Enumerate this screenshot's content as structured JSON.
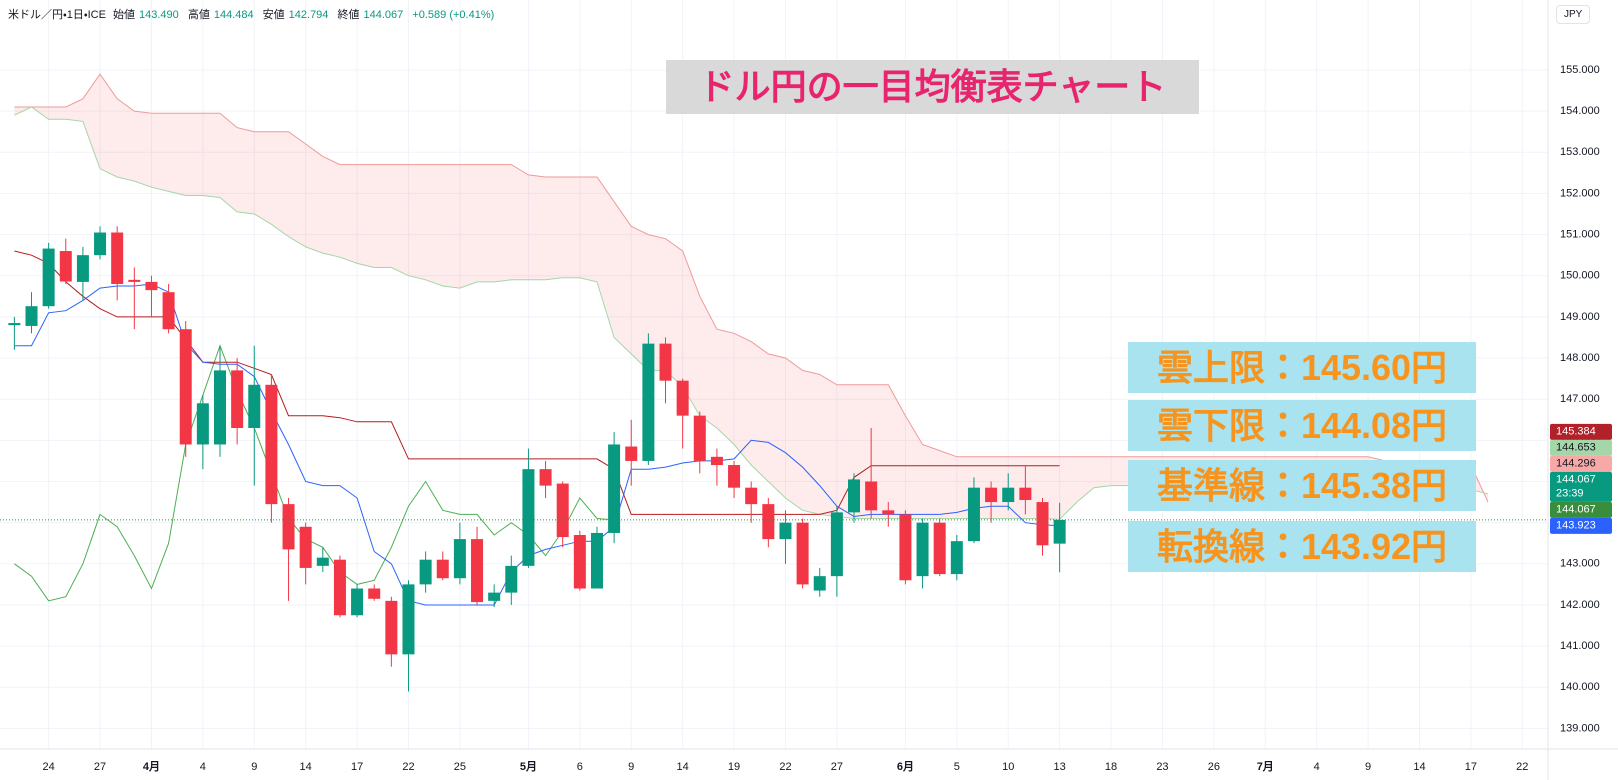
{
  "header": {
    "symbol": "米ドル／円・1日・ICE",
    "fields": [
      {
        "label": "始値",
        "value": "143.490"
      },
      {
        "label": "高値",
        "value": "144.484"
      },
      {
        "label": "安値",
        "value": "142.794"
      },
      {
        "label": "終値",
        "value": "144.067"
      }
    ],
    "change": "+0.589 (+0.41%)"
  },
  "currency": "JPY",
  "chart_data": {
    "type": "candlestick",
    "title": "ドル円の一目均衡表チャート",
    "annotations": [
      "雲上限：145.60円",
      "雲下限：144.08円",
      "基準線：145.38円",
      "転換線：143.92円"
    ],
    "categories": [
      null,
      null,
      "24",
      null,
      null,
      "27",
      null,
      null,
      "4月",
      null,
      null,
      "4",
      null,
      null,
      "9",
      null,
      null,
      "14",
      null,
      null,
      "17",
      null,
      null,
      "22",
      null,
      null,
      "25",
      null,
      null,
      null,
      "5月",
      null,
      null,
      "6",
      null,
      null,
      "9",
      null,
      null,
      "14",
      null,
      null,
      "19",
      null,
      null,
      "22",
      null,
      null,
      "27",
      null,
      null,
      null,
      "6月",
      null,
      null,
      "5",
      null,
      null,
      "10",
      null,
      null,
      "13",
      null,
      null,
      "18",
      null,
      null,
      "23",
      null,
      null,
      "26",
      null,
      null,
      "7月",
      null,
      null,
      "4",
      null,
      null,
      "9",
      null,
      null,
      "14",
      null,
      null,
      "17",
      null,
      null,
      "22",
      null
    ],
    "open": [
      148.8,
      148.78,
      149.26,
      150.6,
      149.85,
      150.5,
      151.05,
      149.9,
      149.85,
      149.6,
      148.7,
      145.9,
      145.9,
      147.7,
      146.3,
      147.35,
      144.45,
      143.9,
      142.95,
      143.1,
      141.75,
      142.4,
      142.1,
      140.8,
      142.5,
      143.1,
      142.65,
      143.6,
      142.1,
      142.3,
      142.95,
      145.3,
      144.95,
      143.7,
      142.4,
      143.75,
      145.85,
      145.5,
      148.35,
      147.45,
      146.6,
      145.6,
      145.4,
      144.85,
      144.45,
      143.6,
      144.0,
      142.35,
      142.7,
      144.25,
      145.0,
      144.3,
      144.2,
      142.7,
      144.0,
      142.75,
      143.55,
      144.85,
      144.5,
      144.85,
      144.5,
      143.49,
      null,
      null,
      null,
      null,
      null,
      null,
      null,
      null,
      null,
      null,
      null,
      null,
      null,
      null,
      null,
      null,
      null,
      null,
      null,
      null,
      null,
      null,
      null,
      null,
      null,
      null,
      null,
      null
    ],
    "high": [
      149.0,
      149.6,
      150.8,
      150.9,
      150.7,
      151.2,
      151.2,
      150.2,
      150.0,
      149.8,
      148.9,
      147.1,
      148.3,
      148.0,
      148.3,
      147.6,
      144.6,
      144.0,
      143.4,
      143.2,
      142.5,
      142.5,
      142.2,
      142.6,
      143.3,
      143.3,
      144.0,
      143.9,
      142.5,
      143.2,
      145.8,
      145.5,
      145.0,
      143.8,
      143.9,
      146.2,
      146.5,
      148.6,
      148.5,
      147.5,
      146.7,
      145.8,
      145.5,
      145.0,
      144.6,
      144.3,
      144.1,
      142.9,
      144.4,
      145.2,
      146.3,
      144.5,
      144.3,
      144.1,
      144.1,
      143.7,
      145.1,
      145.0,
      145.2,
      145.4,
      144.6,
      144.484,
      null,
      null,
      null,
      null,
      null,
      null,
      null,
      null,
      null,
      null,
      null,
      null,
      null,
      null,
      null,
      null,
      null,
      null,
      null,
      null,
      null,
      null,
      null,
      null,
      null,
      null,
      null,
      null
    ],
    "low": [
      148.2,
      148.6,
      149.2,
      149.8,
      149.4,
      150.4,
      149.4,
      148.7,
      149.0,
      148.6,
      145.6,
      145.3,
      145.6,
      145.9,
      144.9,
      144.0,
      142.1,
      142.5,
      142.8,
      141.7,
      141.7,
      142.1,
      140.5,
      139.9,
      142.3,
      142.6,
      142.5,
      142.0,
      141.95,
      142.0,
      142.9,
      144.6,
      143.4,
      142.35,
      142.4,
      143.5,
      144.9,
      145.4,
      146.9,
      145.8,
      145.2,
      144.9,
      144.6,
      144.0,
      143.4,
      143.0,
      142.4,
      142.2,
      142.2,
      144.0,
      144.1,
      143.9,
      142.5,
      142.4,
      142.7,
      142.6,
      143.5,
      144.0,
      144.3,
      144.2,
      143.2,
      142.794,
      null,
      null,
      null,
      null,
      null,
      null,
      null,
      null,
      null,
      null,
      null,
      null,
      null,
      null,
      null,
      null,
      null,
      null,
      null,
      null,
      null,
      null,
      null,
      null,
      null,
      null,
      null,
      null
    ],
    "close": [
      148.85,
      149.26,
      150.66,
      149.86,
      150.5,
      151.05,
      149.8,
      149.85,
      149.65,
      148.7,
      145.9,
      146.9,
      147.7,
      146.3,
      147.35,
      144.45,
      143.35,
      142.9,
      143.15,
      141.75,
      142.4,
      142.15,
      140.8,
      142.5,
      143.1,
      142.65,
      143.6,
      142.07,
      142.3,
      142.95,
      145.3,
      144.9,
      143.65,
      142.4,
      143.75,
      145.9,
      145.5,
      148.35,
      147.45,
      146.6,
      145.5,
      145.4,
      144.85,
      144.45,
      143.6,
      144.0,
      142.5,
      142.7,
      144.25,
      145.05,
      144.3,
      144.2,
      142.6,
      144.0,
      142.75,
      143.55,
      144.85,
      144.5,
      144.85,
      144.55,
      143.45,
      144.067,
      null,
      null,
      null,
      null,
      null,
      null,
      null,
      null,
      null,
      null,
      null,
      null,
      null,
      null,
      null,
      null,
      null,
      null,
      null,
      null,
      null,
      null,
      null,
      null,
      null,
      null,
      null,
      null
    ],
    "up_color": "#089981",
    "down_color": "#f23645",
    "cloud_color": "rgba(242,54,69,0.10)",
    "series": [
      {
        "color": "#ef9a9a",
        "values": [
          154.1,
          154.1,
          154.1,
          154.1,
          154.3,
          154.9,
          154.3,
          154.0,
          153.95,
          153.95,
          153.95,
          153.95,
          153.95,
          153.6,
          153.5,
          153.5,
          153.5,
          153.2,
          152.9,
          152.7,
          152.7,
          152.7,
          152.7,
          152.7,
          152.7,
          152.7,
          152.7,
          152.7,
          152.7,
          152.7,
          152.45,
          152.4,
          152.4,
          152.4,
          152.4,
          151.8,
          151.2,
          151.0,
          150.9,
          150.6,
          149.5,
          148.7,
          148.6,
          148.4,
          148.1,
          148.0,
          147.7,
          147.6,
          147.35,
          147.35,
          147.35,
          147.35,
          146.6,
          145.9,
          145.75,
          145.6,
          145.6,
          145.6,
          145.6,
          145.6,
          145.6,
          145.6,
          145.6,
          145.6,
          145.6,
          145.6,
          145.6,
          145.6,
          145.6,
          145.6,
          145.6,
          145.6,
          145.6,
          145.6,
          145.6,
          145.6,
          145.6,
          145.6,
          145.6,
          145.6,
          145.5,
          145.4,
          145.4,
          145.4,
          145.4,
          145.4,
          144.5,
          null,
          null,
          null
        ]
      },
      {
        "color": "#a5d6a7",
        "values": [
          153.9,
          154.1,
          153.8,
          153.8,
          153.75,
          152.6,
          152.4,
          152.3,
          152.15,
          152.05,
          151.95,
          151.95,
          151.9,
          151.55,
          151.5,
          151.25,
          150.95,
          150.7,
          150.55,
          150.45,
          150.3,
          150.2,
          150.2,
          150.0,
          149.9,
          149.75,
          149.7,
          149.85,
          149.85,
          149.9,
          149.9,
          149.9,
          149.95,
          149.95,
          149.85,
          148.5,
          148.1,
          147.7,
          147.7,
          147.3,
          146.6,
          146.3,
          145.9,
          145.4,
          145.0,
          144.6,
          144.3,
          144.2,
          144.15,
          144.1,
          144.1,
          144.1,
          144.1,
          144.1,
          144.1,
          144.1,
          144.1,
          144.1,
          144.1,
          144.1,
          144.1,
          144.08,
          144.5,
          144.85,
          144.9,
          144.9,
          144.9,
          144.85,
          144.8,
          144.7,
          144.65,
          144.6,
          144.5,
          144.4,
          144.6,
          144.7,
          144.85,
          144.9,
          144.9,
          144.9,
          144.9,
          144.9,
          144.85,
          144.85,
          144.8,
          144.8,
          144.7,
          null,
          null,
          null
        ]
      },
      {
        "color": "#4caf50",
        "values": [
          143.0,
          142.7,
          142.1,
          142.2,
          143.0,
          144.2,
          143.9,
          143.2,
          142.4,
          143.5,
          145.9,
          147.1,
          148.3,
          147.2,
          146.3,
          145.2,
          144.1,
          143.6,
          143.4,
          142.8,
          142.5,
          142.6,
          143.4,
          144.4,
          145.0,
          144.3,
          144.2,
          144.2,
          143.7,
          144.0,
          143.7,
          143.2,
          143.8,
          144.6,
          144.1,
          144.067,
          null,
          null,
          null,
          null,
          null,
          null,
          null,
          null,
          null,
          null,
          null,
          null,
          null,
          null,
          null,
          null,
          null,
          null,
          null,
          null,
          null,
          null,
          null,
          null,
          null,
          null,
          null,
          null,
          null,
          null,
          null,
          null,
          null,
          null,
          null,
          null,
          null,
          null,
          null,
          null,
          null,
          null,
          null,
          null,
          null,
          null,
          null,
          null,
          null,
          null,
          null,
          null,
          null,
          null
        ]
      },
      {
        "color": "#b71c1c",
        "values": [
          150.6,
          150.5,
          150.3,
          149.85,
          149.5,
          149.2,
          149.0,
          149.0,
          149.0,
          149.0,
          148.45,
          147.9,
          147.9,
          147.9,
          147.75,
          147.6,
          146.6,
          146.6,
          146.6,
          146.55,
          146.45,
          146.45,
          146.45,
          145.55,
          145.55,
          145.55,
          145.55,
          145.55,
          145.55,
          145.55,
          145.55,
          145.55,
          145.55,
          145.55,
          145.55,
          145.3,
          144.2,
          144.2,
          144.2,
          144.2,
          144.2,
          144.2,
          144.2,
          144.2,
          144.2,
          144.2,
          144.2,
          144.2,
          144.3,
          145.1,
          145.384,
          145.384,
          145.384,
          145.384,
          145.384,
          145.384,
          145.384,
          145.384,
          145.384,
          145.384,
          145.384,
          145.384,
          null,
          null,
          null,
          null,
          null,
          null,
          null,
          null,
          null,
          null,
          null,
          null,
          null,
          null,
          null,
          null,
          null,
          null,
          null,
          null,
          null,
          null,
          null,
          null,
          null,
          null,
          null,
          null
        ]
      },
      {
        "color": "#2962ff",
        "values": [
          148.3,
          148.3,
          149.1,
          149.15,
          149.4,
          149.7,
          149.75,
          149.75,
          149.8,
          149.6,
          148.35,
          147.9,
          147.85,
          147.85,
          147.55,
          146.7,
          145.9,
          145.0,
          144.9,
          144.9,
          144.6,
          143.3,
          143.0,
          142.1,
          142.0,
          142.0,
          142.0,
          142.0,
          142.0,
          142.8,
          143.2,
          143.35,
          143.45,
          143.55,
          143.55,
          143.9,
          145.3,
          145.3,
          145.35,
          145.45,
          145.5,
          145.5,
          145.55,
          146.0,
          145.95,
          145.7,
          145.35,
          144.9,
          144.4,
          144.15,
          144.2,
          144.2,
          144.2,
          144.2,
          144.2,
          144.25,
          144.35,
          144.4,
          144.4,
          144.0,
          143.95,
          143.923,
          null,
          null,
          null,
          null,
          null,
          null,
          null,
          null,
          null,
          null,
          null,
          null,
          null,
          null,
          null,
          null,
          null,
          null,
          null,
          null,
          null,
          null,
          null,
          null,
          null,
          null,
          null,
          null
        ]
      }
    ],
    "ylim": [
      138.5,
      156.7
    ],
    "yticks": [
      {
        "value": 139,
        "label": "139.000"
      },
      {
        "value": 140,
        "label": "140.000"
      },
      {
        "value": 141,
        "label": "141.000"
      },
      {
        "value": 142,
        "label": "142.000"
      },
      {
        "value": 143,
        "label": "143.000"
      },
      {
        "value": 144,
        "label": "144.000"
      },
      {
        "value": 145,
        "label": "145.000"
      },
      {
        "value": 146,
        "label": "146.000"
      },
      {
        "value": 147,
        "label": "147.000"
      },
      {
        "value": 148,
        "label": "148.000"
      },
      {
        "value": 149,
        "label": "149.000"
      },
      {
        "value": 150,
        "label": "150.000"
      },
      {
        "value": 151,
        "label": "151.000"
      },
      {
        "value": 152,
        "label": "152.000"
      },
      {
        "value": 153,
        "label": "153.000"
      },
      {
        "value": 154,
        "label": "154.000"
      },
      {
        "value": 155,
        "label": "155.000"
      }
    ],
    "grid": true,
    "price_tags": [
      {
        "value": 145.384,
        "color": "#b2202a",
        "text_color": "#ffffff"
      },
      {
        "value": 144.653,
        "color": "#a5d6a7",
        "text_color": "#131722"
      },
      {
        "value": 144.296,
        "color": "#f7a9a8",
        "text_color": "#131722"
      },
      {
        "value": 144.067,
        "color": "#089981",
        "text_color": "#ffffff",
        "countdown": "23:39"
      },
      {
        "value": 144.067,
        "color": "#388e3c",
        "text_color": "#ffffff"
      },
      {
        "value": 143.923,
        "color": "#2962ff",
        "text_color": "#ffffff"
      }
    ]
  }
}
